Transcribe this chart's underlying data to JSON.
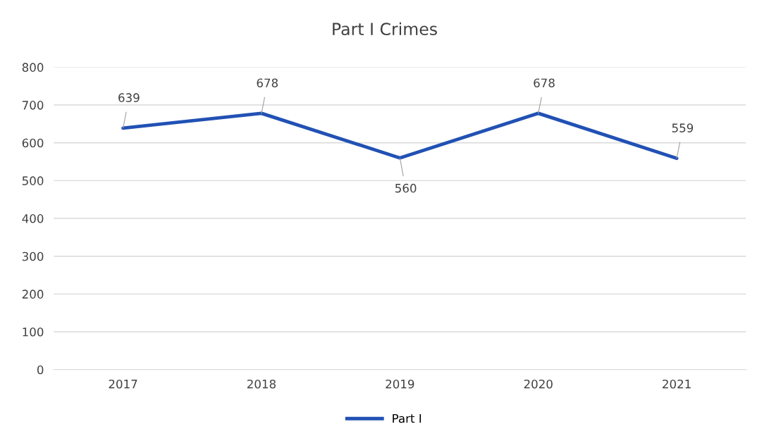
{
  "chart_data": {
    "type": "line",
    "title": "Part I Crimes",
    "categories": [
      "2017",
      "2018",
      "2019",
      "2020",
      "2021"
    ],
    "series": [
      {
        "name": "Part I",
        "color": "#2151b4",
        "values": [
          639,
          678,
          560,
          678,
          559
        ]
      }
    ],
    "ylim": [
      0,
      800
    ],
    "yticks": [
      0,
      100,
      200,
      300,
      400,
      500,
      600,
      700,
      800
    ],
    "grid": "y",
    "legend": "bottom",
    "marker": "none",
    "line_style": "solid",
    "data_labels": true
  }
}
